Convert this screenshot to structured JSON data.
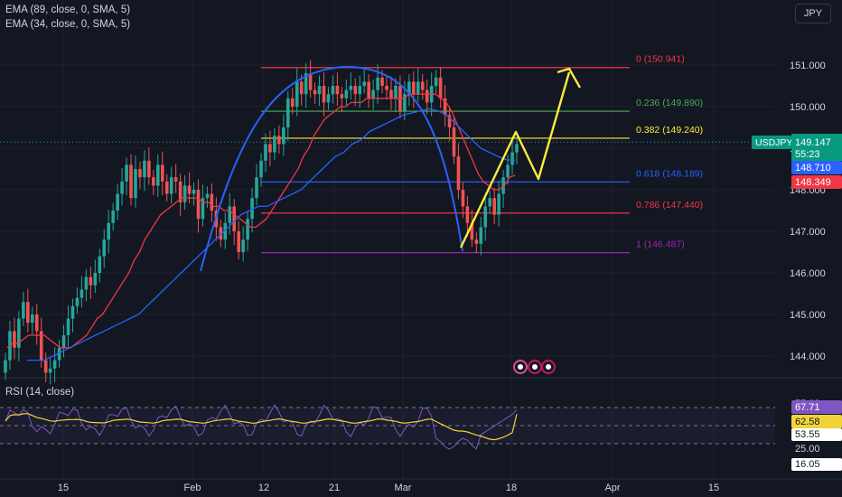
{
  "legend": {
    "ema89": "EMA (89, close, 0, SMA, 5)",
    "ema34": "EMA (34, close, 0, SMA, 5)",
    "rsi": "RSI (14, close)"
  },
  "currency_button": "JPY",
  "symbol": "USDJPY",
  "price_badges": {
    "last": "149.147",
    "countdown": "55:23",
    "ema89": "148.710",
    "ema34": "148.349",
    "rsi": "67.71",
    "rsi_ma": "62.58",
    "rsi_mid": "53.55",
    "rsi_low": "16.05"
  },
  "colors": {
    "background": "#131722",
    "bull": "#26a69a",
    "bear": "#ef5350",
    "ema34": "#f23645",
    "ema89": "#2962ff",
    "projection": "#ffeb3b",
    "arc": "#2962ff",
    "rsi": "#7e57c2",
    "rsi_ma": "#f0d43a",
    "fib0": "#f23645",
    "fib236": "#4caf50",
    "fib382": "#ffeb3b",
    "fib618": "#2962ff",
    "fib786": "#f23645",
    "fib1": "#9c27b0"
  },
  "chart_data": {
    "type": "candlestick",
    "ytick_labels": [
      "151.000",
      "150.000",
      "149.000",
      "148.000",
      "147.000",
      "146.000",
      "145.000",
      "144.000"
    ],
    "yticks": [
      151,
      150,
      149,
      148,
      147,
      146,
      145,
      144
    ],
    "ylim": [
      143.45,
      152.2
    ],
    "xtick_labels": [
      "15",
      "Feb",
      "12",
      "21",
      "Mar",
      "18",
      "Apr",
      "15"
    ],
    "fib_levels": [
      {
        "ratio": 0,
        "price": 150.941,
        "label": "0 (150.941)",
        "color": "#f23645"
      },
      {
        "ratio": 0.236,
        "price": 149.89,
        "label": "0.236 (149.890)",
        "color": "#4caf50"
      },
      {
        "ratio": 0.382,
        "price": 149.24,
        "label": "0.382 (149.240)",
        "color": "#ffeb3b"
      },
      {
        "ratio": 0.618,
        "price": 148.189,
        "label": "0.618 (148.189)",
        "color": "#2962ff"
      },
      {
        "ratio": 0.786,
        "price": 147.44,
        "label": "0.786 (147.440)",
        "color": "#f23645"
      },
      {
        "ratio": 1,
        "price": 146.487,
        "label": "1 (146.487)",
        "color": "#9c27b0"
      }
    ],
    "candles_close": [
      143.9,
      144.6,
      144.2,
      144.9,
      145.3,
      144.8,
      145.0,
      144.6,
      143.9,
      143.6,
      143.7,
      143.9,
      144.2,
      144.5,
      144.9,
      145.2,
      145.4,
      145.6,
      145.9,
      145.7,
      146.0,
      146.4,
      146.8,
      147.2,
      147.5,
      147.9,
      148.2,
      148.6,
      147.8,
      148.5,
      148.3,
      148.7,
      148.3,
      148.1,
      148.6,
      148.2,
      147.9,
      148.3,
      148.2,
      147.7,
      148.1,
      147.9,
      148.0,
      147.3,
      147.8,
      147.9,
      147.5,
      147.1,
      146.8,
      147.2,
      147.6,
      147.0,
      146.5,
      146.8,
      147.3,
      147.8,
      148.3,
      148.7,
      149.1,
      148.9,
      149.3,
      149.1,
      149.5,
      150.2,
      150.0,
      150.6,
      150.3,
      150.8,
      150.4,
      150.3,
      150.5,
      150.1,
      150.3,
      150.5,
      150.3,
      150.2,
      150.4,
      150.5,
      150.3,
      150.5,
      150.6,
      150.2,
      150.4,
      150.7,
      150.5,
      150.4,
      150.2,
      150.5,
      149.9,
      150.3,
      150.6,
      150.3,
      150.6,
      150.4,
      150.1,
      150.5,
      150.7,
      150.2,
      149.8,
      149.5,
      148.8,
      148.0,
      147.6,
      147.2,
      146.8,
      146.7,
      147.1,
      147.6,
      147.8,
      147.4,
      147.9,
      148.3,
      148.6,
      148.9,
      149.1
    ],
    "ema34": [
      144.2,
      144.3,
      144.3,
      144.4,
      144.5,
      144.5,
      144.5,
      144.5,
      144.4,
      144.3,
      144.2,
      144.2,
      144.2,
      144.3,
      144.4,
      144.5,
      144.7,
      144.9,
      145.0,
      145.2,
      145.4,
      145.6,
      145.8,
      146.0,
      146.3,
      146.5,
      146.8,
      147.0,
      147.2,
      147.4,
      147.5,
      147.6,
      147.7,
      147.8,
      147.8,
      147.8,
      147.8,
      147.7,
      147.7,
      147.6,
      147.6,
      147.5,
      147.5,
      147.4,
      147.3,
      147.2,
      147.1,
      147.1,
      147.2,
      147.3,
      147.5,
      147.7,
      147.9,
      148.1,
      148.3,
      148.5,
      148.8,
      149.0,
      149.3,
      149.5,
      149.7,
      149.8,
      149.9,
      150.0,
      150.0,
      150.1,
      150.1,
      150.1,
      150.2,
      150.2,
      150.2,
      150.2,
      150.2,
      150.2,
      150.2,
      150.2,
      150.3,
      150.3,
      150.3,
      150.3,
      150.3,
      150.3,
      150.2,
      150.1,
      149.9,
      149.6,
      149.3,
      149.0,
      148.7,
      148.4,
      148.2,
      148.1,
      148.0,
      148.0,
      148.1,
      148.3,
      148.35
    ],
    "ema89": [
      143.9,
      143.9,
      143.9,
      144.0,
      144.1,
      144.2,
      144.3,
      144.4,
      144.5,
      144.6,
      144.7,
      144.8,
      144.9,
      145.0,
      145.2,
      145.4,
      145.6,
      145.8,
      146.0,
      146.2,
      146.4,
      146.6,
      146.8,
      147.0,
      147.2,
      147.4,
      147.5,
      147.6,
      147.6,
      147.7,
      147.8,
      147.9,
      148.0,
      148.2,
      148.4,
      148.6,
      148.8,
      148.9,
      149.1,
      149.2,
      149.4,
      149.5,
      149.6,
      149.7,
      149.8,
      149.85,
      149.9,
      149.95,
      149.9,
      149.8,
      149.6,
      149.4,
      149.2,
      149.0,
      148.9,
      148.8,
      148.72,
      148.71
    ],
    "rsi_levels": {
      "upper": 70,
      "middle": 50,
      "lower": 30
    },
    "rsi_ticks": [
      "75.00",
      "25.00"
    ],
    "rsi_last": 67.71,
    "rsi_ma_last": 62.58
  }
}
